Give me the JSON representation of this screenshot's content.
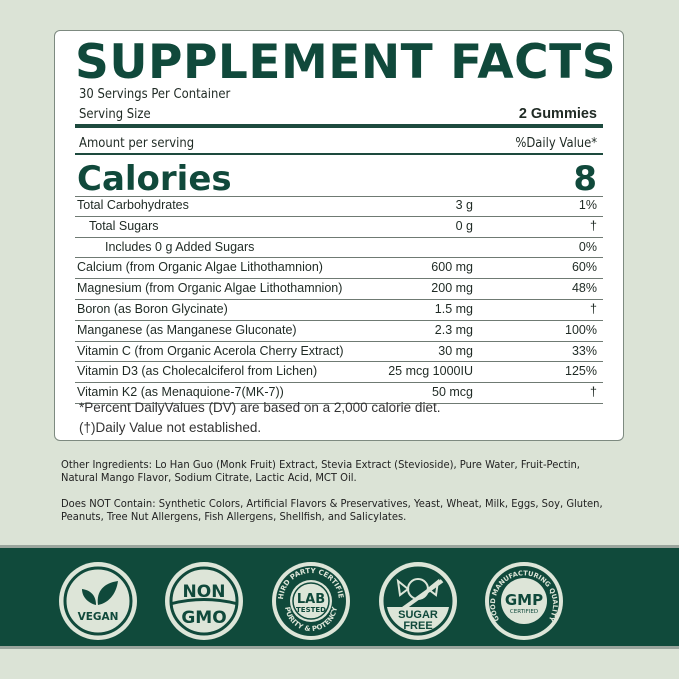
{
  "title": "SUPPLEMENT FACTS",
  "servings_per_container": "30 Servings Per Container",
  "serving_size_label": "Serving Size",
  "serving_size_value": "2 Gummies",
  "amount_per_serving": "Amount per serving",
  "daily_value_header": "%Daily Value*",
  "calories_label": "Calories",
  "calories_value": "8",
  "rows": [
    {
      "name": "Total Carbohydrates",
      "amount": "3 g",
      "dv": "1%"
    },
    {
      "name": "Total Sugars",
      "amount": "0 g",
      "dv": "†"
    },
    {
      "name": "Includes 0 g Added Sugars",
      "amount": "",
      "dv": "0%"
    },
    {
      "name": "Calcium (from Organic Algae Lithothamnion)",
      "amount": "600 mg",
      "dv": "60%"
    },
    {
      "name": "Magnesium (from Organic Algae Lithothamnion)",
      "amount": "200 mg",
      "dv": "48%"
    },
    {
      "name": "Boron (as Boron Glycinate)",
      "amount": "1.5 mg",
      "dv": "†"
    },
    {
      "name": "Manganese (as Manganese Gluconate)",
      "amount": "2.3 mg",
      "dv": "100%"
    },
    {
      "name": "Vitamin C (from Organic Acerola Cherry Extract)",
      "amount": "30 mg",
      "dv": "33%"
    },
    {
      "name": "Vitamin D3 (as Cholecalciferol from Lichen)",
      "amount": "25 mcg 1000IU",
      "dv": "125%"
    },
    {
      "name": "Vitamin K2 (as Menaquione-7(MK-7))",
      "amount": "50 mcg",
      "dv": "†"
    }
  ],
  "footnote_dv": "*Percent DailyValues (DV) are based on a 2,000 calorie diet.",
  "footnote_dagger": "(†)Daily Value not established.",
  "other_ingredients": "Other Ingredients: Lo Han Guo (Monk Fruit) Extract, Stevia Extract (Stevioside), Pure Water, Fruit-Pectin, Natural Mango Flavor, Sodium Citrate, Lactic Acid, MCT Oil.",
  "does_not_contain": "Does NOT Contain: Synthetic Colors, Artificial Flavors & Preservatives, Yeast, Wheat, Milk, Eggs, Soy, Gluten, Peanuts, Tree Nut Allergens, Fish Allergens, Shellfish, and Salicylates.",
  "badges": {
    "vegan": {
      "icon": "leaf-icon",
      "label": "VEGAN"
    },
    "non_gmo": {
      "top": "NON",
      "bottom": "GMO"
    },
    "lab": {
      "ring_top": "THIRD PARTY CERTIFIED",
      "ring_bottom": "PURITY & POTENCY",
      "line1": "LAB",
      "line2": "TESTED"
    },
    "sugar_free": {
      "icon": "candy-icon",
      "line1": "SUGAR",
      "line2": "FREE"
    },
    "gmp": {
      "ring": "GOOD MANUFACTURING QUALITY",
      "line1": "GMP",
      "line2": "CERTIFIED"
    }
  },
  "colors": {
    "brand_green": "#10493b",
    "background": "#dbe3d6",
    "badge_light": "#dde5d8"
  }
}
